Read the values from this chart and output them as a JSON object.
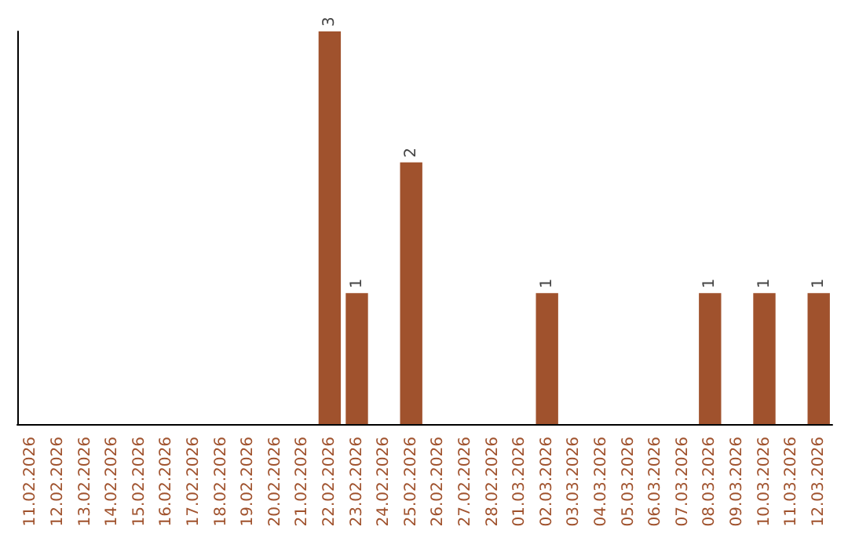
{
  "chart_data": {
    "type": "bar",
    "categories": [
      "11.02.2026",
      "12.02.2026",
      "13.02.2026",
      "14.02.2026",
      "15.02.2026",
      "16.02.2026",
      "17.02.2026",
      "18.02.2026",
      "19.02.2026",
      "20.02.2026",
      "21.02.2026",
      "22.02.2026",
      "23.02.2026",
      "24.02.2026",
      "25.02.2026",
      "26.02.2026",
      "27.02.2026",
      "28.02.2026",
      "01.03.2026",
      "02.03.2026",
      "03.03.2026",
      "04.03.2026",
      "05.03.2026",
      "06.03.2026",
      "07.03.2026",
      "08.03.2026",
      "09.03.2026",
      "10.03.2026",
      "11.03.2026",
      "12.03.2026"
    ],
    "values": [
      null,
      null,
      null,
      null,
      null,
      null,
      null,
      null,
      null,
      null,
      null,
      3,
      1,
      null,
      2,
      null,
      null,
      null,
      null,
      1,
      null,
      null,
      null,
      null,
      null,
      1,
      null,
      1,
      null,
      1
    ],
    "color": "#a0522d",
    "data_labels": true,
    "tick_labels": "x"
  }
}
